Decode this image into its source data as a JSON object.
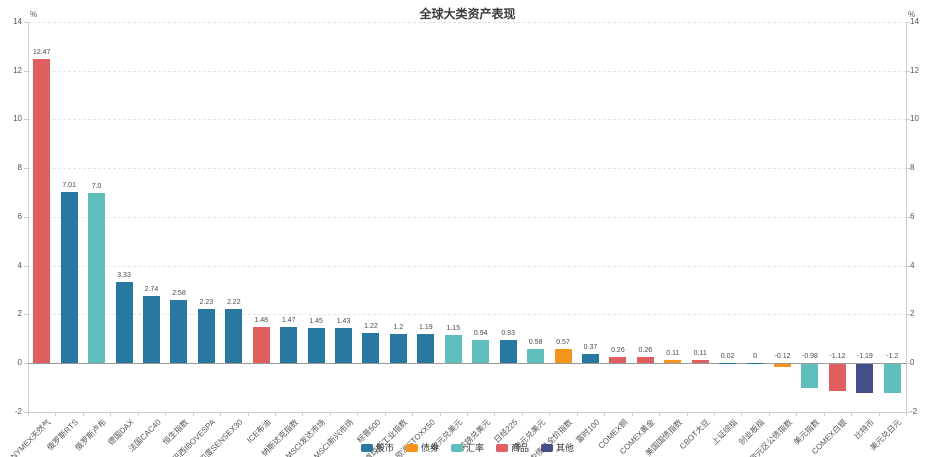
{
  "title": "全球大类资产表现",
  "y_axis": {
    "unit": "%",
    "min": -2,
    "max": 14,
    "interval": 2,
    "ticks": [
      14,
      12,
      10,
      8,
      6,
      4,
      2,
      0,
      -2
    ]
  },
  "legend": [
    {
      "label": "股市",
      "group": "equity",
      "color": "#2878a2"
    },
    {
      "label": "债券",
      "group": "bond",
      "color": "#f5941d"
    },
    {
      "label": "汇率",
      "group": "fx",
      "color": "#5ebfbc"
    },
    {
      "label": "商品",
      "group": "commodity",
      "color": "#df5f5f"
    },
    {
      "label": "其他",
      "group": "other",
      "color": "#444f89"
    }
  ],
  "chart_data": {
    "type": "bar",
    "title": "全球大类资产表现",
    "xlabel": "",
    "ylabel": "%",
    "ylim": [
      -2,
      14
    ],
    "grid": true,
    "legend_position": "bottom",
    "categories": [
      "NYMEX天然气",
      "俄罗斯RTS",
      "俄罗斯卢布",
      "德国DAX",
      "法国CAC40",
      "恒生指数",
      "巴西IBOVESPA",
      "印度SENSEX30",
      "ICE布油",
      "纳斯达克指数",
      "MSCI发达市场",
      "MSCI新兴市场",
      "标普500",
      "道琼斯工业指数",
      "欧洲STOXX50",
      "欧元兑美元",
      "英镑兑美元",
      "日经225",
      "澳元兑美元",
      "中债总全价指数",
      "富时100",
      "COMEX铜",
      "COMEX黄金",
      "美国国债指数",
      "CBOT大豆",
      "上证综指",
      "创业板指",
      "欧元区公债指数",
      "美元指数",
      "COMEX白银",
      "比特币",
      "美元兑日元"
    ],
    "values": [
      12.47,
      7.01,
      7.0,
      3.33,
      2.74,
      2.58,
      2.23,
      2.22,
      1.48,
      1.47,
      1.45,
      1.43,
      1.22,
      1.2,
      1.19,
      1.15,
      0.94,
      0.93,
      0.58,
      0.57,
      0.37,
      0.26,
      0.26,
      0.11,
      0.11,
      0.02,
      0,
      -0.12,
      -0.98,
      -1.12,
      -1.19,
      -1.2
    ],
    "value_labels": [
      "12.47",
      "7.01",
      "7.0",
      "3.33",
      "2.74",
      "2.58",
      "2.23",
      "2.22",
      "1.48",
      "1.47",
      "1.45",
      "1.43",
      "1.22",
      "1.2",
      "1.19",
      "1.15",
      "0.94",
      "0.93",
      "0.58",
      "0.57",
      "0.37",
      "0.26",
      "0.26",
      "0.11",
      "0.11",
      "0.02",
      "0",
      "-0.12",
      "-0.98",
      "-1.12",
      "-1.19",
      "-1.2"
    ],
    "groups": [
      "commodity",
      "equity",
      "fx",
      "equity",
      "equity",
      "equity",
      "equity",
      "equity",
      "commodity",
      "equity",
      "equity",
      "equity",
      "equity",
      "equity",
      "equity",
      "fx",
      "fx",
      "equity",
      "fx",
      "bond",
      "equity",
      "commodity",
      "commodity",
      "bond",
      "commodity",
      "equity",
      "equity",
      "bond",
      "fx",
      "commodity",
      "other",
      "fx"
    ]
  }
}
